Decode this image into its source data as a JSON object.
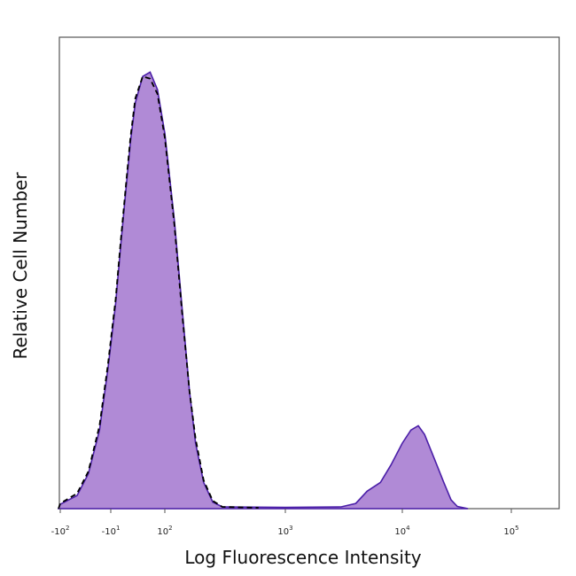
{
  "chart_data": {
    "type": "area",
    "title": "",
    "xlabel": "Log Fluorescence Intensity",
    "ylabel": "Relative Cell Number",
    "x_scale": "biexponential (log decades with negative/linear region)",
    "ticks": [
      {
        "sign": "-",
        "base": "10",
        "exp": "2",
        "value": -100
      },
      {
        "sign": "-",
        "base": "10",
        "exp": "1",
        "value": -10
      },
      {
        "sign": "",
        "base": "10",
        "exp": "2",
        "value": 100
      },
      {
        "sign": "",
        "base": "10",
        "exp": "3",
        "value": 1000
      },
      {
        "sign": "",
        "base": "10",
        "exp": "4",
        "value": 10000
      },
      {
        "sign": "",
        "base": "10",
        "exp": "5",
        "value": 100000
      }
    ],
    "y_range": [
      0,
      1.08
    ],
    "grid": false,
    "legend": "none",
    "series": [
      {
        "style": "filled",
        "color": "#b08ad6",
        "line_color": "#4b1fa8",
        "points": [
          [
            -150,
            0.0
          ],
          [
            -100,
            0.01
          ],
          [
            -70,
            0.03
          ],
          [
            -50,
            0.08
          ],
          [
            -30,
            0.18
          ],
          [
            -15,
            0.32
          ],
          [
            0,
            0.47
          ],
          [
            10,
            0.6
          ],
          [
            20,
            0.72
          ],
          [
            30,
            0.84
          ],
          [
            40,
            0.93
          ],
          [
            55,
            0.99
          ],
          [
            70,
            1.0
          ],
          [
            85,
            0.96
          ],
          [
            100,
            0.86
          ],
          [
            120,
            0.66
          ],
          [
            140,
            0.45
          ],
          [
            160,
            0.27
          ],
          [
            180,
            0.15
          ],
          [
            210,
            0.06
          ],
          [
            250,
            0.015
          ],
          [
            300,
            0.004
          ],
          [
            1000,
            0.003
          ],
          [
            3000,
            0.004
          ],
          [
            4000,
            0.012
          ],
          [
            5000,
            0.04
          ],
          [
            6500,
            0.06
          ],
          [
            8000,
            0.1
          ],
          [
            10000,
            0.15
          ],
          [
            12000,
            0.18
          ],
          [
            14000,
            0.19
          ],
          [
            16000,
            0.17
          ],
          [
            20000,
            0.11
          ],
          [
            24000,
            0.06
          ],
          [
            28000,
            0.02
          ],
          [
            32000,
            0.005
          ],
          [
            40000,
            0.0
          ]
        ]
      },
      {
        "style": "dashed",
        "color": "#000000",
        "points": [
          [
            -150,
            0.0
          ],
          [
            -100,
            0.012
          ],
          [
            -70,
            0.035
          ],
          [
            -50,
            0.085
          ],
          [
            -30,
            0.19
          ],
          [
            -15,
            0.33
          ],
          [
            0,
            0.48
          ],
          [
            10,
            0.61
          ],
          [
            20,
            0.73
          ],
          [
            30,
            0.85
          ],
          [
            40,
            0.94
          ],
          [
            55,
            0.99
          ],
          [
            70,
            0.985
          ],
          [
            85,
            0.95
          ],
          [
            100,
            0.85
          ],
          [
            120,
            0.65
          ],
          [
            140,
            0.44
          ],
          [
            160,
            0.27
          ],
          [
            180,
            0.16
          ],
          [
            210,
            0.065
          ],
          [
            250,
            0.018
          ],
          [
            300,
            0.004
          ],
          [
            600,
            0.002
          ]
        ]
      }
    ]
  }
}
